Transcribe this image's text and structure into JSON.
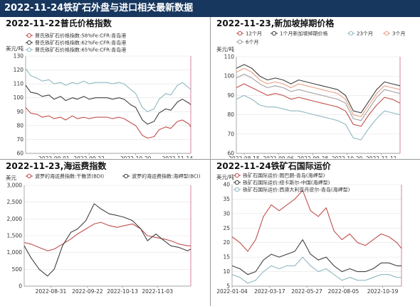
{
  "header": {
    "title": "2022-11-24铁矿石外盘与进口相关最新数据"
  },
  "chart_data": [
    {
      "type": "line",
      "title": "2022-11-22普氏价格指数",
      "unit": "美元/吨",
      "ylim": [
        60,
        130
      ],
      "yticks": [
        60,
        70,
        80,
        90,
        100,
        110,
        120,
        130
      ],
      "xticks": [
        "2022-09-01",
        "2022-09-22",
        "2022-10-20",
        "2022-11-14"
      ],
      "x": [
        "2022-08-15",
        "2022-08-18",
        "2022-08-22",
        "2022-08-25",
        "2022-08-29",
        "2022-09-01",
        "2022-09-05",
        "2022-09-08",
        "2022-09-12",
        "2022-09-15",
        "2022-09-19",
        "2022-09-22",
        "2022-09-26",
        "2022-09-29",
        "2022-10-03",
        "2022-10-06",
        "2022-10-10",
        "2022-10-13",
        "2022-10-17",
        "2022-10-20",
        "2022-10-24",
        "2022-10-27",
        "2022-10-31",
        "2022-11-03",
        "2022-11-07",
        "2022-11-10",
        "2022-11-14",
        "2022-11-17",
        "2022-11-21",
        "2022-11-22"
      ],
      "series": [
        {
          "name": "普氏铁矿石价格指数:58%Fe:CFR:青岛港",
          "color": "#c0504d",
          "values": [
            93,
            89,
            88,
            86,
            87,
            85,
            86,
            84,
            87,
            85,
            86,
            85,
            86,
            86,
            86,
            85,
            86,
            85,
            82,
            80,
            73,
            71,
            72,
            77,
            79,
            78,
            83,
            84,
            81,
            79
          ]
        },
        {
          "name": "普氏铁矿石价格指数:62%Fe:CFR:青岛港",
          "color": "#404040",
          "values": [
            109,
            104,
            103,
            101,
            102,
            99,
            101,
            98,
            100,
            99,
            101,
            99,
            100,
            100,
            100,
            99,
            100,
            99,
            95,
            93,
            84,
            81,
            83,
            89,
            92,
            91,
            97,
            99,
            96,
            95
          ]
        },
        {
          "name": "普氏铁矿石价格指数:65%Fe:CFR:青岛港",
          "color": "#8fb8c0",
          "values": [
            121,
            116,
            114,
            112,
            113,
            110,
            111,
            109,
            111,
            110,
            112,
            110,
            111,
            111,
            111,
            110,
            111,
            110,
            106,
            103,
            93,
            90,
            92,
            99,
            103,
            102,
            109,
            111,
            107,
            106
          ]
        }
      ]
    },
    {
      "type": "line",
      "title": "2022-11-23,新加坡掉期价格",
      "unit": "美元/吨",
      "ylim": [
        60,
        110
      ],
      "yticks": [
        60,
        70,
        80,
        90,
        100,
        110
      ],
      "xticks": [
        "2022-08-15",
        "2022-09-06",
        "2022-09-28",
        "2022-10-20",
        "2022-11-11"
      ],
      "x": [
        "2022-08-10",
        "2022-08-15",
        "2022-08-20",
        "2022-08-25",
        "2022-08-30",
        "2022-09-04",
        "2022-09-09",
        "2022-09-14",
        "2022-09-19",
        "2022-09-24",
        "2022-09-29",
        "2022-10-04",
        "2022-10-09",
        "2022-10-14",
        "2022-10-19",
        "2022-10-24",
        "2022-10-29",
        "2022-11-03",
        "2022-11-08",
        "2022-11-13",
        "2022-11-18",
        "2022-11-23"
      ],
      "series": [
        {
          "name": "12个月",
          "color": "#c0504d",
          "values": [
            94,
            96,
            94,
            92,
            90,
            91,
            90,
            88,
            89,
            88,
            87,
            86,
            85,
            84,
            82,
            75,
            74,
            80,
            85,
            89,
            88,
            86
          ]
        },
        {
          "name": "1个月新加坡掉期价格",
          "color": "#404040",
          "values": [
            104,
            106,
            104,
            100,
            98,
            99,
            98,
            96,
            98,
            97,
            96,
            95,
            94,
            93,
            90,
            82,
            81,
            87,
            93,
            97,
            96,
            95
          ]
        },
        {
          "name": "23个月",
          "color": "#8fb8c0",
          "values": [
            88,
            90,
            88,
            85,
            84,
            84,
            83,
            82,
            82,
            81,
            80,
            79,
            78,
            77,
            75,
            68,
            67,
            73,
            78,
            82,
            81,
            80
          ]
        },
        {
          "name": "3个月",
          "color": "#e8a080",
          "values": [
            102,
            104,
            102,
            98,
            96,
            97,
            96,
            94,
            96,
            95,
            94,
            93,
            92,
            91,
            88,
            80,
            79,
            85,
            91,
            95,
            94,
            93
          ]
        },
        {
          "name": "6个月",
          "color": "#a0a0a0",
          "values": [
            99,
            101,
            99,
            96,
            94,
            95,
            94,
            92,
            93,
            92,
            91,
            90,
            89,
            88,
            86,
            78,
            77,
            83,
            89,
            93,
            92,
            91
          ]
        }
      ]
    },
    {
      "type": "line",
      "title": "2022-11-23,海运费指数",
      "unit": "美元",
      "ylim": [
        0,
        3000
      ],
      "yticks": [
        0,
        500,
        1000,
        1500,
        2000,
        2500,
        3000
      ],
      "ytick_labels": [
        "0",
        "500",
        "1,000",
        "1,500",
        "2,000",
        "2,500",
        "3,000"
      ],
      "xticks": [
        "2022-08-31",
        "2022-09-22",
        "2022-10-13",
        "2022-11-03"
      ],
      "x": [
        "2022-08-15",
        "2022-08-19",
        "2022-08-24",
        "2022-08-29",
        "2022-09-02",
        "2022-09-07",
        "2022-09-12",
        "2022-09-16",
        "2022-09-21",
        "2022-09-26",
        "2022-09-30",
        "2022-10-05",
        "2022-10-10",
        "2022-10-14",
        "2022-10-19",
        "2022-10-24",
        "2022-10-28",
        "2022-11-02",
        "2022-11-07",
        "2022-11-11",
        "2022-11-16",
        "2022-11-21",
        "2022-11-23"
      ],
      "series": [
        {
          "name": "波罗的海运费指数:干散货(BDI)",
          "color": "#c0504d",
          "values": [
            1300,
            1250,
            1150,
            1050,
            1100,
            1250,
            1400,
            1550,
            1700,
            1850,
            1900,
            1800,
            1750,
            1800,
            1850,
            1700,
            1500,
            1450,
            1400,
            1350,
            1250,
            1200,
            1200
          ]
        },
        {
          "name": "波罗的海运费指数:海岬型(BCI)",
          "color": "#404040",
          "values": [
            1200,
            850,
            500,
            300,
            500,
            1200,
            1600,
            1700,
            1950,
            2450,
            2300,
            2150,
            2100,
            2050,
            1950,
            1700,
            1350,
            1550,
            1350,
            1200,
            1150,
            1050,
            1100
          ]
        }
      ]
    },
    {
      "type": "line",
      "title": "2022-11-24铁矿石国际运价",
      "unit": "美元/吨",
      "ylim": [
        5,
        40
      ],
      "yticks": [
        5,
        10,
        15,
        20,
        25,
        30,
        35,
        40
      ],
      "xticks": [
        "2022-01-04",
        "2022-03-17",
        "2022-05-27",
        "2022-08-05",
        "2022-10-19"
      ],
      "x": [
        "2022-01-04",
        "2022-01-19",
        "2022-02-03",
        "2022-02-18",
        "2022-03-05",
        "2022-03-20",
        "2022-04-04",
        "2022-04-19",
        "2022-05-04",
        "2022-05-19",
        "2022-06-03",
        "2022-06-18",
        "2022-07-03",
        "2022-07-18",
        "2022-08-02",
        "2022-08-17",
        "2022-09-01",
        "2022-09-16",
        "2022-10-01",
        "2022-10-16",
        "2022-10-31",
        "2022-11-15",
        "2022-11-24"
      ],
      "series": [
        {
          "name": "铁矿石国际运价:图巴朗-青岛(海岬型)",
          "color": "#c0504d",
          "values": [
            22,
            20,
            17,
            21,
            29,
            33,
            31,
            33,
            35,
            38,
            31,
            29,
            32,
            24,
            21,
            23,
            20,
            19,
            21,
            23,
            22,
            20,
            18
          ]
        },
        {
          "name": "铁矿石国际运价:纽卡斯尔-中国(海岬型)",
          "color": "#404040",
          "values": [
            12,
            11,
            9,
            10,
            14,
            16,
            15,
            16,
            17,
            21,
            16,
            14,
            15,
            12,
            10,
            11,
            10,
            10,
            11,
            13,
            13,
            12,
            12
          ]
        },
        {
          "name": "铁矿石国际运价:西澳大利亚丹皮尔-青岛(海岬型)",
          "color": "#8fb8c0",
          "values": [
            9,
            8,
            6,
            7,
            10,
            12,
            11,
            12,
            12,
            15,
            12,
            10,
            11,
            9,
            7,
            8,
            7,
            7,
            8,
            9,
            9,
            8,
            8
          ]
        }
      ]
    }
  ]
}
